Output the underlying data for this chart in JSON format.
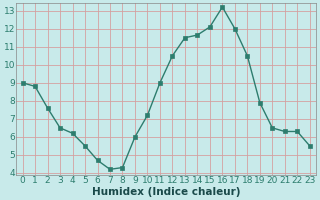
{
  "x": [
    0,
    1,
    2,
    3,
    4,
    5,
    6,
    7,
    8,
    9,
    10,
    11,
    12,
    13,
    14,
    15,
    16,
    17,
    18,
    19,
    20,
    21,
    22,
    23
  ],
  "y": [
    9.0,
    8.8,
    7.6,
    6.5,
    6.2,
    5.5,
    4.7,
    4.2,
    4.3,
    6.0,
    7.2,
    9.0,
    10.5,
    11.5,
    11.65,
    12.1,
    13.2,
    12.0,
    10.5,
    7.9,
    6.5,
    6.3,
    6.3,
    5.5
  ],
  "xlabel": "Humidex (Indice chaleur)",
  "ylim": [
    3.9,
    13.4
  ],
  "xlim": [
    -0.5,
    23.5
  ],
  "yticks": [
    4,
    5,
    6,
    7,
    8,
    9,
    10,
    11,
    12,
    13
  ],
  "xticks": [
    0,
    1,
    2,
    3,
    4,
    5,
    6,
    7,
    8,
    9,
    10,
    11,
    12,
    13,
    14,
    15,
    16,
    17,
    18,
    19,
    20,
    21,
    22,
    23
  ],
  "line_color": "#2d7d6e",
  "marker_color": "#2d7d6e",
  "bg_color": "#c8eaea",
  "grid_color": "#d4a0a0",
  "xlabel_fontsize": 7.5,
  "tick_fontsize": 6.5,
  "tick_color": "#2d7d6e"
}
